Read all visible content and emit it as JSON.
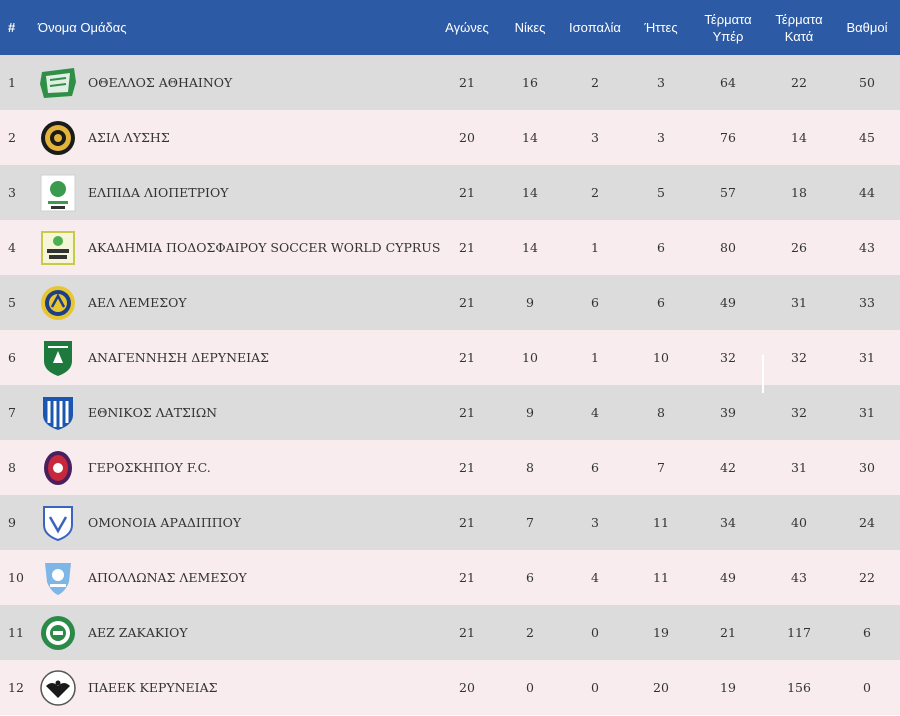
{
  "header": {
    "pos": "#",
    "team": "Όνομα Ομάδας",
    "played": "Αγώνες",
    "wins": "Νίκες",
    "draws": "Ισοπαλία",
    "losses": "Ήττες",
    "gf": [
      "Τέρματα",
      "Υπέρ"
    ],
    "ga": [
      "Τέρματα",
      "Κατά"
    ],
    "points": "Βαθμοί"
  },
  "colors": {
    "header_bg": "#2d5aa5",
    "row_odd": "#dcdcdc",
    "row_even": "#f8ecee"
  },
  "rows": [
    {
      "pos": "1",
      "team": "ΟΘΕΛΛΟΣ ΑΘΗΑΙΝΟΥ",
      "played": "21",
      "wins": "16",
      "draws": "2",
      "losses": "3",
      "gf": "64",
      "ga": "22",
      "points": "50",
      "logo": "othellos-crest"
    },
    {
      "pos": "2",
      "team": "ΑΣΙΛ ΛΥΣΗΣ",
      "played": "20",
      "wins": "14",
      "draws": "3",
      "losses": "3",
      "gf": "76",
      "ga": "14",
      "points": "45",
      "logo": "asil-crest"
    },
    {
      "pos": "3",
      "team": "ΕΛΠΙΔΑ ΛΙΟΠΕΤΡΙΟΥ",
      "played": "21",
      "wins": "14",
      "draws": "2",
      "losses": "5",
      "gf": "57",
      "ga": "18",
      "points": "44",
      "logo": "elpida-crest"
    },
    {
      "pos": "4",
      "team": "ΑΚΑΔΗΜΙΑ ΠΟΔΟΣΦΑΙΡΟΥ SOCCER WORLD CYPRUS",
      "played": "21",
      "wins": "14",
      "draws": "1",
      "losses": "6",
      "gf": "80",
      "ga": "26",
      "points": "43",
      "logo": "soccer-world-crest"
    },
    {
      "pos": "5",
      "team": "ΑΕΛ ΛΕΜΕΣΟΥ",
      "played": "21",
      "wins": "9",
      "draws": "6",
      "losses": "6",
      "gf": "49",
      "ga": "31",
      "points": "33",
      "logo": "ael-crest"
    },
    {
      "pos": "6",
      "team": "ΑΝΑΓΕΝΝΗΣΗ ΔΕΡΥΝΕΙΑΣ",
      "played": "21",
      "wins": "10",
      "draws": "1",
      "losses": "10",
      "gf": "32",
      "ga": "32",
      "points": "31",
      "logo": "anagennisi-crest"
    },
    {
      "pos": "7",
      "team": "ΕΘΝΙΚΟΣ ΛΑΤΣΙΩΝ",
      "played": "21",
      "wins": "9",
      "draws": "4",
      "losses": "8",
      "gf": "39",
      "ga": "32",
      "points": "31",
      "logo": "ethnikos-crest"
    },
    {
      "pos": "8",
      "team": "ΓΕΡΟΣΚΗΠΟΥ F.C.",
      "played": "21",
      "wins": "8",
      "draws": "6",
      "losses": "7",
      "gf": "42",
      "ga": "31",
      "points": "30",
      "logo": "geroskipou-crest"
    },
    {
      "pos": "9",
      "team": "ΟΜΟΝΟΙΑ ΑΡΑΔΙΠΠΟΥ",
      "played": "21",
      "wins": "7",
      "draws": "3",
      "losses": "11",
      "gf": "34",
      "ga": "40",
      "points": "24",
      "logo": "omonoia-crest"
    },
    {
      "pos": "10",
      "team": "ΑΠΟΛΛΩΝΑΣ ΛΕΜΕΣΟΥ",
      "played": "21",
      "wins": "6",
      "draws": "4",
      "losses": "11",
      "gf": "49",
      "ga": "43",
      "points": "22",
      "logo": "apollon-crest"
    },
    {
      "pos": "11",
      "team": "ΑΕΖ ΖΑΚΑΚΙΟΥ",
      "played": "21",
      "wins": "2",
      "draws": "0",
      "losses": "19",
      "gf": "21",
      "ga": "117",
      "points": "6",
      "logo": "aez-crest"
    },
    {
      "pos": "12",
      "team": "ΠΑΕΕΚ ΚΕΡΥΝΕΙΑΣ",
      "played": "20",
      "wins": "0",
      "draws": "0",
      "losses": "20",
      "gf": "19",
      "ga": "156",
      "points": "0",
      "logo": "paeek-crest"
    }
  ]
}
